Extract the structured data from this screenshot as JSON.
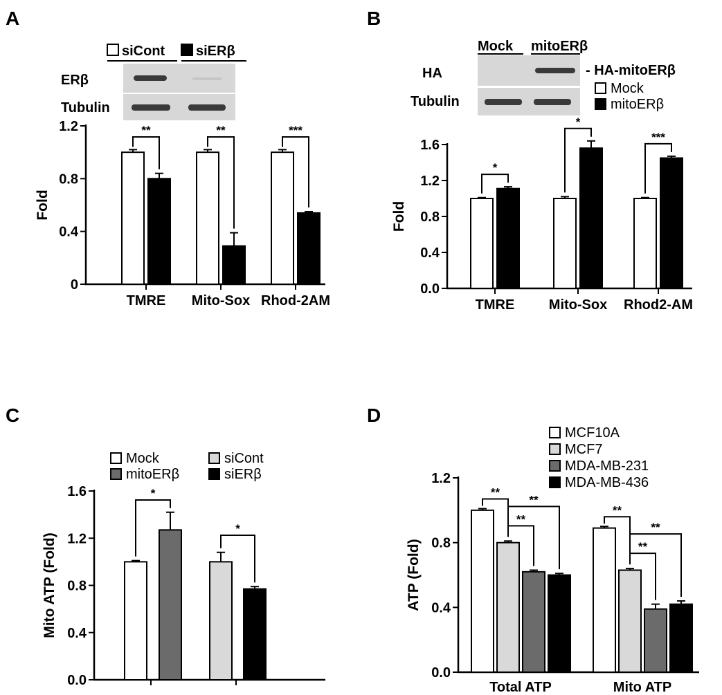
{
  "chart_data": [
    {
      "panel": "A",
      "type": "bar",
      "categories": [
        "TMRE",
        "Mito-Sox",
        "Rhod-2AM"
      ],
      "series": [
        {
          "name": "siCont",
          "values": [
            1.0,
            1.0,
            1.0
          ],
          "errors": [
            0.02,
            0.02,
            0.02
          ]
        },
        {
          "name": "siERβ",
          "values": [
            0.8,
            0.29,
            0.54
          ],
          "errors": [
            0.04,
            0.1,
            0.01
          ]
        }
      ],
      "ylabel": "Fold",
      "ylim": [
        0,
        1.2
      ],
      "yticks": [
        "0",
        "0.4",
        "0.8",
        "1.2"
      ],
      "significance": [
        "**",
        "**",
        "***"
      ],
      "blot": {
        "lanes": [
          "siCont",
          "siERβ"
        ],
        "rows": [
          "ERβ",
          "Tubulin"
        ]
      }
    },
    {
      "panel": "B",
      "type": "bar",
      "categories": [
        "TMRE",
        "Mito-Sox",
        "Rhod2-AM"
      ],
      "series": [
        {
          "name": "Mock",
          "values": [
            1.0,
            1.0,
            1.0
          ],
          "errors": [
            0.01,
            0.02,
            0.01
          ]
        },
        {
          "name": "mitoERβ",
          "values": [
            1.11,
            1.56,
            1.45
          ],
          "errors": [
            0.02,
            0.08,
            0.02
          ]
        }
      ],
      "ylabel": "Fold",
      "ylim": [
        0,
        1.6
      ],
      "yticks": [
        "0.0",
        "0.4",
        "0.8",
        "1.2",
        "1.6"
      ],
      "significance": [
        "*",
        "*",
        "***"
      ],
      "blot": {
        "lanes": [
          "Mock",
          "mitoERβ"
        ],
        "rows": [
          "HA",
          "Tubulin"
        ],
        "band_label": "- HA-mitoERβ"
      }
    },
    {
      "panel": "C",
      "type": "bar",
      "bars": [
        {
          "name": "Mock",
          "value": 1.0,
          "error": 0.01
        },
        {
          "name": "mitoERβ",
          "value": 1.27,
          "error": 0.15
        },
        {
          "name": "siCont",
          "value": 1.0,
          "error": 0.08
        },
        {
          "name": "siERβ",
          "value": 0.77,
          "error": 0.02
        }
      ],
      "ylabel": "Mito ATP (Fold)",
      "ylim": [
        0,
        1.6
      ],
      "yticks": [
        "0.0",
        "0.4",
        "0.8",
        "1.2",
        "1.6"
      ],
      "significance": [
        "*",
        "*"
      ]
    },
    {
      "panel": "D",
      "type": "bar",
      "categories": [
        "Total ATP",
        "Mito ATP"
      ],
      "series": [
        {
          "name": "MCF10A",
          "values": [
            1.0,
            0.89
          ],
          "errors": [
            0.01,
            0.01
          ]
        },
        {
          "name": "MCF7",
          "values": [
            0.8,
            0.63
          ],
          "errors": [
            0.01,
            0.01
          ]
        },
        {
          "name": "MDA-MB-231",
          "values": [
            0.62,
            0.39
          ],
          "errors": [
            0.01,
            0.03
          ]
        },
        {
          "name": "MDA-MB-436",
          "values": [
            0.6,
            0.42
          ],
          "errors": [
            0.01,
            0.02
          ]
        }
      ],
      "ylabel": "ATP (Fold)",
      "ylim": [
        0,
        1.2
      ],
      "yticks": [
        "0.0",
        "0.4",
        "0.8",
        "1.2"
      ],
      "significance": [
        "**",
        "**",
        "**",
        "**",
        "**",
        "**"
      ]
    }
  ],
  "panel_letters": [
    "A",
    "B",
    "C",
    "D"
  ],
  "colors": {
    "white_fill": "#ffffff",
    "black_fill": "#000000",
    "light_gray": "#d9d9d9",
    "dark_gray": "#6b6b6b",
    "blot_bg": "#d7d7d7",
    "band": "#3a3a3a"
  }
}
